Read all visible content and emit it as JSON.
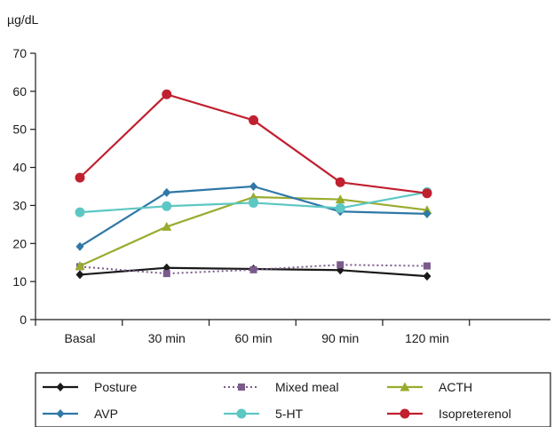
{
  "chart_data": {
    "type": "line",
    "title": "",
    "ylabel": "µg/dL",
    "xlabel": "",
    "categories": [
      "Basal",
      "30 min",
      "60 min",
      "90 min",
      "120 min"
    ],
    "ylim": [
      0,
      70
    ],
    "yticks": [
      0,
      10,
      20,
      30,
      40,
      50,
      60,
      70
    ],
    "grid": false,
    "legend_position": "bottom",
    "series": [
      {
        "name": "Posture",
        "marker": "diamond",
        "dash": "solid",
        "color": "#1a1a1a",
        "values": [
          11.8,
          13.6,
          13.3,
          13.0,
          11.4
        ]
      },
      {
        "name": "Mixed meal",
        "marker": "square",
        "dash": "dotted",
        "color": "#7b5a8c",
        "values": [
          13.9,
          12.1,
          13.1,
          14.4,
          14.1
        ]
      },
      {
        "name": "ACTH",
        "marker": "triangle",
        "dash": "solid",
        "color": "#9aab2e",
        "values": [
          14.1,
          24.4,
          32.2,
          31.6,
          28.8
        ]
      },
      {
        "name": "AVP",
        "marker": "diamond",
        "dash": "solid",
        "color": "#2f78a7",
        "values": [
          19.2,
          33.4,
          35.0,
          28.4,
          27.8
        ]
      },
      {
        "name": "5-HT",
        "marker": "circle",
        "dash": "solid",
        "color": "#5cc7c3",
        "values": [
          28.2,
          29.8,
          30.7,
          29.3,
          33.5
        ]
      },
      {
        "name": "Isopreterenol",
        "marker": "circle",
        "dash": "solid",
        "color": "#c0202f",
        "values": [
          37.3,
          59.2,
          52.4,
          36.1,
          33.2
        ]
      }
    ]
  }
}
